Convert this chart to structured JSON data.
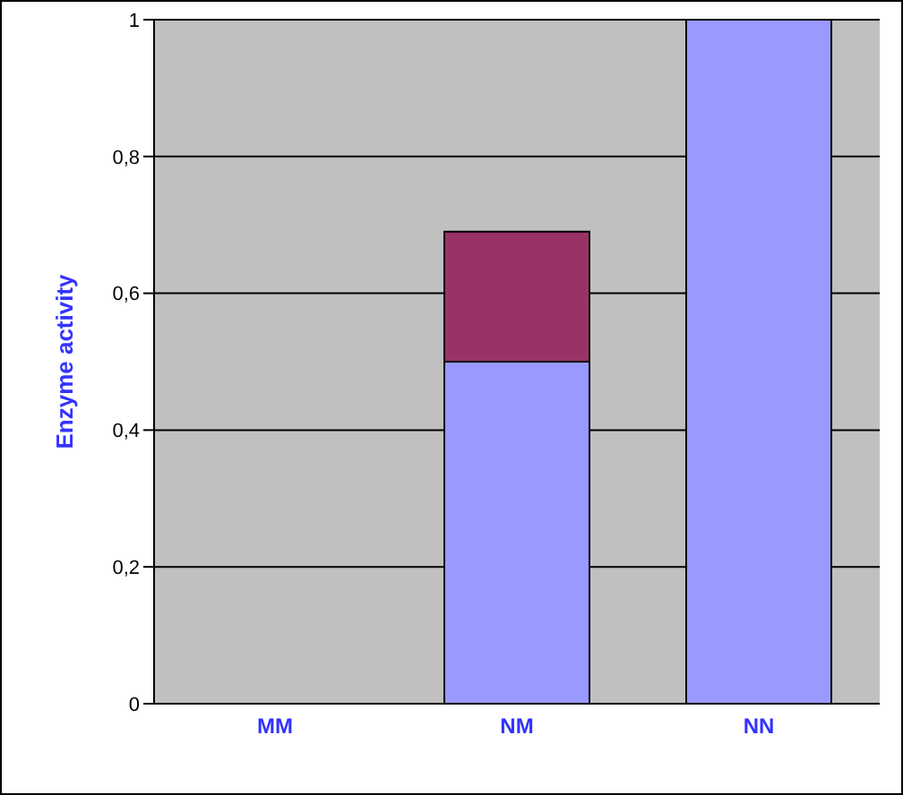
{
  "chart_data": {
    "type": "bar",
    "stacked": true,
    "ylabel": "Enzyme activity",
    "categories": [
      "MM",
      "NM",
      "NN"
    ],
    "series": [
      {
        "color": "#9999ff",
        "values": [
          0,
          0.5,
          1
        ]
      },
      {
        "color": "#993366",
        "values": [
          0,
          0.19,
          0
        ]
      }
    ],
    "ylim": [
      0,
      1
    ],
    "yticks": [
      0,
      {
        "value": 0.2,
        "label": "0,2"
      },
      {
        "value": 0.4,
        "label": "0,4"
      },
      {
        "value": 0.6,
        "label": "0,6"
      },
      {
        "value": 0.8,
        "label": "0,8"
      },
      1
    ],
    "grid": "y",
    "legend": false
  }
}
